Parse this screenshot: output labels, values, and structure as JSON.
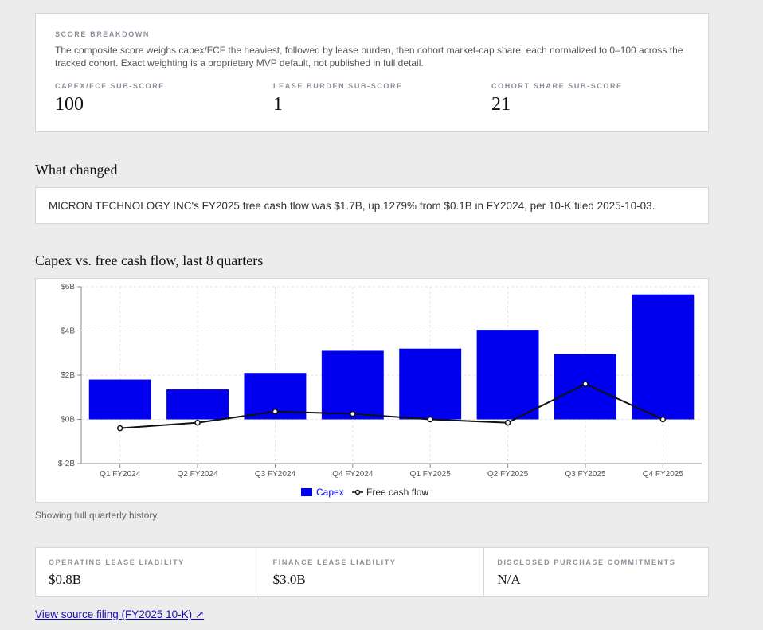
{
  "score": {
    "heading": "SCORE BREAKDOWN",
    "description": "The composite score weighs capex/FCF the heaviest, followed by lease burden, then cohort market-cap share, each normalized to 0–100 across the tracked cohort. Exact weighting is a proprietary MVP default, not published in full detail.",
    "subscores": [
      {
        "label": "CAPEX/FCF SUB-SCORE",
        "value": "100"
      },
      {
        "label": "LEASE BURDEN SUB-SCORE",
        "value": "1"
      },
      {
        "label": "COHORT SHARE SUB-SCORE",
        "value": "21"
      }
    ]
  },
  "changed": {
    "heading": "What changed",
    "text": "MICRON TECHNOLOGY INC's FY2025 free cash flow was $1.7B, up 1279% from $0.1B in FY2024, per 10-K filed 2025-10-03."
  },
  "chart": {
    "heading": "Capex vs. free cash flow, last 8 quarters",
    "note": "Showing full quarterly history."
  },
  "chart_data": {
    "type": "bar",
    "categories": [
      "Q1 FY2024",
      "Q2 FY2024",
      "Q3 FY2024",
      "Q4 FY2024",
      "Q1 FY2025",
      "Q2 FY2025",
      "Q3 FY2025",
      "Q4 FY2025"
    ],
    "series": [
      {
        "name": "Capex",
        "type": "bar",
        "color": "#0000ee",
        "values": [
          1.8,
          1.35,
          2.1,
          3.1,
          3.2,
          4.05,
          2.95,
          5.65
        ]
      },
      {
        "name": "Free cash flow",
        "type": "line",
        "color": "#111111",
        "values": [
          -0.4,
          -0.15,
          0.35,
          0.25,
          0.0,
          -0.15,
          1.6,
          0.0
        ]
      }
    ],
    "ylim": [
      -2,
      6
    ],
    "yticks": [
      {
        "value": 6,
        "label": "$6B"
      },
      {
        "value": 4,
        "label": "$4B"
      },
      {
        "value": 2,
        "label": "$2B"
      },
      {
        "value": 0,
        "label": "$0B"
      },
      {
        "value": -2,
        "label": "$-2B"
      }
    ],
    "grid": true,
    "legend": "bottom-center"
  },
  "lease": [
    {
      "label": "OPERATING LEASE LIABILITY",
      "value": "$0.8B"
    },
    {
      "label": "FINANCE LEASE LIABILITY",
      "value": "$3.0B"
    },
    {
      "label": "DISCLOSED PURCHASE COMMITMENTS",
      "value": "N/A"
    }
  ],
  "source_link": "View source filing (FY2025 10-K) ↗"
}
